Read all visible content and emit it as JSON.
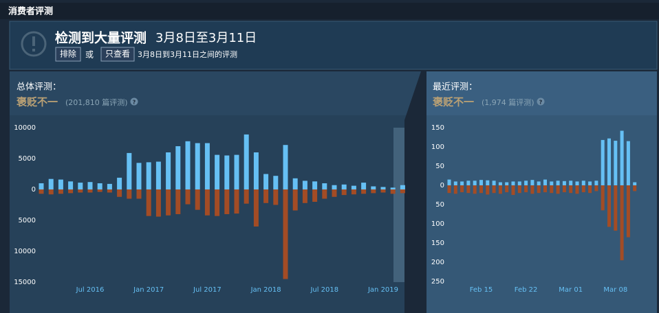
{
  "header": {
    "title": "消费者评测"
  },
  "notice": {
    "title": "检测到大量评测",
    "dates": "3月8日至3月11日",
    "exclude": "排除",
    "or": "或",
    "only": "只查看",
    "range": "3月8日到3月11日之间的评测"
  },
  "panels": [
    {
      "label": "总体评测：",
      "rating": "褒贬不一",
      "count": "(201,810 篇评测)",
      "help": "?"
    },
    {
      "label": "最近评测：",
      "rating": "褒贬不一",
      "count": "(1,974 篇评测)",
      "help": "?"
    }
  ],
  "chart_data": [
    {
      "type": "bar",
      "categories": [
        null,
        null,
        null,
        null,
        null,
        "Jul 2016",
        null,
        null,
        null,
        null,
        null,
        "Jan 2017",
        null,
        null,
        null,
        null,
        null,
        "Jul 2017",
        null,
        null,
        null,
        null,
        null,
        "Jan 2018",
        null,
        null,
        null,
        null,
        null,
        "Jul 2018",
        null,
        null,
        null,
        null,
        null,
        "Jan 2019",
        null,
        null
      ],
      "series": [
        {
          "color": "#66c0f4",
          "values": [
            1000,
            1700,
            1600,
            1300,
            1100,
            1200,
            1000,
            900,
            1900,
            5900,
            4300,
            4400,
            4500,
            6000,
            7000,
            7800,
            7500,
            7500,
            5600,
            5500,
            5600,
            8900,
            6000,
            2500,
            2200,
            7200,
            1800,
            1400,
            1300,
            1000,
            700,
            800,
            600,
            1100,
            500,
            400,
            300,
            700
          ]
        },
        {
          "color": "#a34c25",
          "values": [
            -700,
            -800,
            -700,
            -600,
            -500,
            -500,
            -400,
            -500,
            -1200,
            -1500,
            -1500,
            -4300,
            -4400,
            -4200,
            -4000,
            -2400,
            -3300,
            -4200,
            -4300,
            -4000,
            -3900,
            -2300,
            -6000,
            -2200,
            -2500,
            -14500,
            -3400,
            -2200,
            -2000,
            -1500,
            -1200,
            -900,
            -800,
            -700,
            -600,
            -500,
            -700,
            -600
          ]
        }
      ],
      "ylim": [
        -15000,
        10000
      ],
      "yticks": [
        10000,
        5000,
        0,
        {
          "value": -5000,
          "label": "5000"
        },
        {
          "value": -10000,
          "label": "10000"
        },
        {
          "value": -15000,
          "label": "15000"
        }
      ]
    },
    {
      "type": "bar",
      "categories": [
        null,
        null,
        null,
        null,
        null,
        "Feb 15",
        null,
        null,
        null,
        null,
        null,
        null,
        "Feb 22",
        null,
        null,
        null,
        null,
        null,
        null,
        "Mar 01",
        null,
        null,
        null,
        null,
        null,
        null,
        "Mar 08",
        null,
        null,
        null
      ],
      "series": [
        {
          "color": "#66c0f4",
          "values": [
            15,
            10,
            10,
            12,
            12,
            14,
            13,
            12,
            8,
            8,
            10,
            10,
            12,
            14,
            10,
            15,
            10,
            12,
            11,
            12,
            10,
            12,
            10,
            12,
            118,
            122,
            116,
            142,
            115,
            8
          ]
        },
        {
          "color": "#a34c25",
          "values": [
            -20,
            -22,
            -18,
            -20,
            -22,
            -20,
            -24,
            -20,
            -22,
            -18,
            -25,
            -20,
            -18,
            -22,
            -20,
            -18,
            -20,
            -22,
            -18,
            -20,
            -22,
            -18,
            -20,
            -15,
            -65,
            -108,
            -118,
            -195,
            -135,
            -15
          ]
        }
      ],
      "ylim": [
        -250,
        150
      ],
      "yticks": [
        150,
        100,
        50,
        0,
        {
          "value": -50,
          "label": "50"
        },
        {
          "value": -100,
          "label": "100"
        },
        {
          "value": -150,
          "label": "150"
        },
        {
          "value": -200,
          "label": "200"
        },
        {
          "value": -250,
          "label": "250"
        }
      ]
    }
  ]
}
